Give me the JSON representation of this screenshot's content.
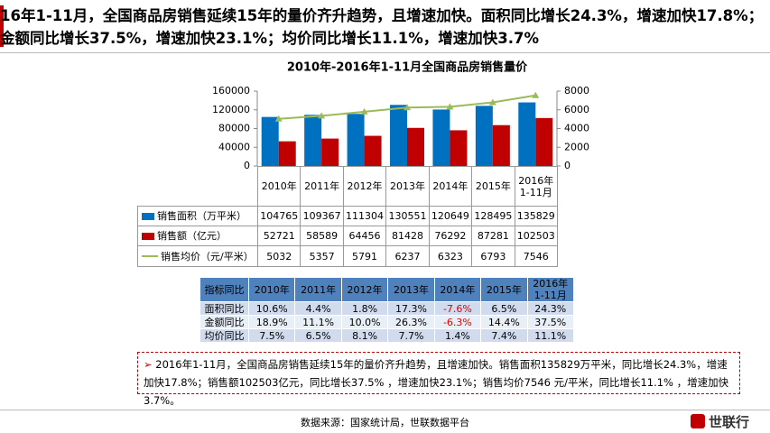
{
  "header": {
    "title": "16年1-11月，全国商品房销售延续15年的量价齐升趋势，且增速加快。面积同比增长24.3%，增速加快17.8%；金额同比增长37.5%，增速加快23.1%；均价同比增长11.1%，增速加快3.7%"
  },
  "chart_data": {
    "type": "bar",
    "title": "2010年-2016年1-11月全国商品房销售量价",
    "categories": [
      "2010年",
      "2011年",
      "2012年",
      "2013年",
      "2014年",
      "2015年",
      "2016年1-11月"
    ],
    "series": [
      {
        "name": "销售面积（万平米）",
        "color": "#0070c0",
        "type": "bar",
        "values": [
          104765,
          109367,
          111304,
          130551,
          120649,
          128495,
          135829
        ]
      },
      {
        "name": "销售额（亿元）",
        "color": "#c00000",
        "type": "bar",
        "values": [
          52721,
          58589,
          64456,
          81428,
          76292,
          87281,
          102503
        ]
      },
      {
        "name": "销售均价（元/平米）",
        "color": "#9bbb59",
        "type": "line",
        "axis": "y2",
        "values": [
          5032,
          5357,
          5791,
          6237,
          6323,
          6793,
          7546
        ]
      }
    ],
    "ylim": [
      0,
      160000
    ],
    "yticks": [
      0,
      40000,
      80000,
      120000,
      160000
    ],
    "y2lim": [
      0,
      8000
    ],
    "y2ticks": [
      0,
      2000,
      4000,
      6000,
      8000
    ]
  },
  "table": {
    "header": [
      "指标同比",
      "2010年",
      "2011年",
      "2012年",
      "2013年",
      "2014年",
      "2015年",
      "2016年1-11月"
    ],
    "rows": [
      [
        "面积同比",
        "10.6%",
        "4.4%",
        "1.8%",
        "17.3%",
        "-7.6%",
        "6.5%",
        "24.3%"
      ],
      [
        "金额同比",
        "18.9%",
        "11.1%",
        "10.0%",
        "26.3%",
        "-6.3%",
        "14.4%",
        "37.5%"
      ],
      [
        "均价同比",
        "7.5%",
        "6.5%",
        "8.1%",
        "7.7%",
        "1.4%",
        "7.4%",
        "11.1%"
      ]
    ]
  },
  "summary": "2016年1-11月，全国商品房销售延续15年的量价齐升趋势，且增速加快。销售面积135829万平米，同比增长24.3%，增速加快17.8%；销售额102503亿元，同比增长37.5% ，增速加快23.1%；销售均价7546 元/平米，同比增长11.1% ，增速加快3.7%。",
  "footer": {
    "source": "数据来源：国家统计局，世联数据平台",
    "logo": "世联行"
  }
}
